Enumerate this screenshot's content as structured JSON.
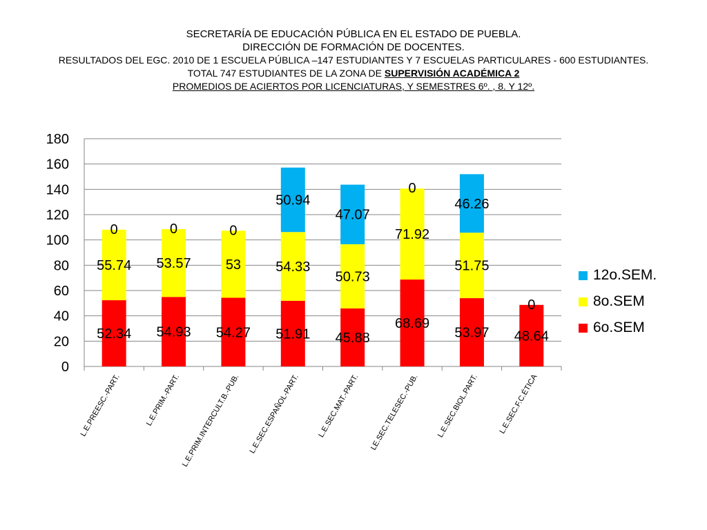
{
  "title": {
    "line1": "SECRETARÍA DE EDUCACIÓN PÚBLICA EN EL ESTADO DE PUEBLA.",
    "line2": "DIRECCIÓN DE FORMACIÓN DE DOCENTES.",
    "line3": "RESULTADOS DEL EGC. 2010  DE 1  ESCUELA PÚBLICA –147 ESTUDIANTES  Y  7 ESCUELAS  PARTICULARES -  600  ESTUDIANTES.",
    "line4_prefix": "TOTAL  747  ESTUDIANTES  DE LA  ZONA  DE ",
    "line4_bold": "SUPERVISIÓN  ACADÉMICA   2",
    "line5": "PROMEDIOS DE ACIERTOS  POR LICENCIATURAS,  Y  SEMESTRES  6º. , 8.  Y  12º."
  },
  "chart_data": {
    "type": "bar",
    "stacked": true,
    "categories": [
      "L.E.PREESC.-PART.",
      "L.E.PRIM.-PART.",
      "L.E.PRIM.INTERCULT.B.-PUB.",
      "L.E.SEC.ESPAÑOL-PART.",
      "L.E.SEC.MAT.-PART.",
      "LE.SEC.TELESEC.-PUB.",
      "L.E.SEC.BIOL.PART.",
      "L.E.SEC.F.C.ÉTICA"
    ],
    "series": [
      {
        "name": "6o.SEM",
        "color": "#ff0000",
        "values": [
          52.34,
          54.93,
          54.27,
          51.91,
          45.88,
          68.69,
          53.97,
          48.64
        ]
      },
      {
        "name": "8o.SEM",
        "color": "#ffff00",
        "values": [
          55.74,
          53.57,
          53,
          54.33,
          50.73,
          71.92,
          51.75,
          0
        ]
      },
      {
        "name": "12o.SEM.",
        "color": "#00b0f0",
        "values": [
          0,
          0,
          0,
          50.94,
          47.07,
          0,
          46.26,
          null
        ]
      }
    ],
    "ylim": [
      0,
      180
    ],
    "yticks": [
      0,
      20,
      40,
      60,
      80,
      100,
      120,
      140,
      160,
      180
    ],
    "grid": true,
    "legend": "right",
    "data_labels": true
  }
}
